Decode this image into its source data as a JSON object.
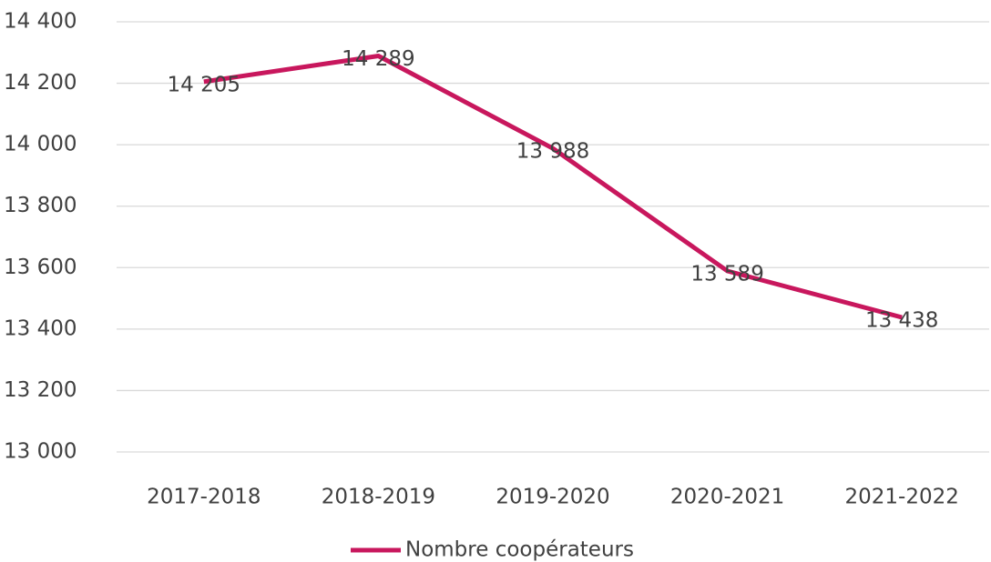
{
  "chart_data": {
    "type": "line",
    "categories": [
      "2017-2018",
      "2018-2019",
      "2019-2020",
      "2020-2021",
      "2021-2022"
    ],
    "series": [
      {
        "name": "Nombre coopérateurs",
        "color": "#c8175d",
        "values": [
          14205,
          14289,
          13988,
          13589,
          13438
        ],
        "value_labels": [
          "14 205",
          "14 289",
          "13 988",
          "13 589",
          "13 438"
        ]
      }
    ],
    "ylim": [
      13000,
      14400
    ],
    "yticks": [
      {
        "value": 13000,
        "label": "13 000"
      },
      {
        "value": 13200,
        "label": "13 200"
      },
      {
        "value": 13400,
        "label": "13 400"
      },
      {
        "value": 13600,
        "label": "13 600"
      },
      {
        "value": 13800,
        "label": "13 800"
      },
      {
        "value": 14000,
        "label": "14 000"
      },
      {
        "value": 14200,
        "label": "14 200"
      },
      {
        "value": 14400,
        "label": "14 400"
      }
    ],
    "grid": true,
    "legend": "bottom"
  }
}
